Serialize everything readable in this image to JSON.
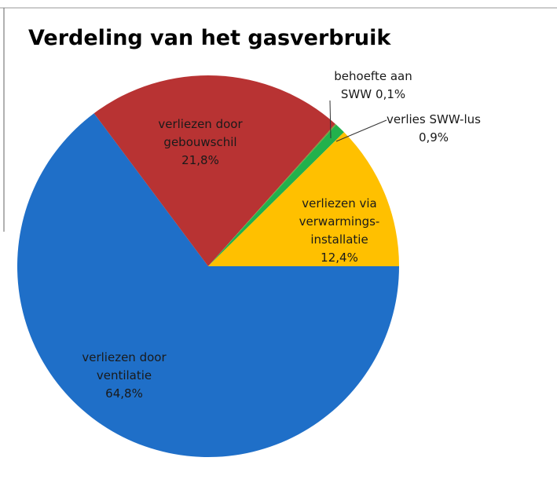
{
  "chart_data": {
    "type": "pie",
    "title": "Verdeling van het gasverbruik",
    "categories": [
      [
        "verliezen door",
        "ventilatie"
      ],
      [
        "verliezen door",
        "gebouwschil"
      ],
      [
        "behoefte aan",
        "SWW"
      ],
      [
        "verlies SWW-lus"
      ],
      [
        "verliezen via",
        "verwarmings-",
        "installatie"
      ]
    ],
    "values": [
      64.8,
      21.8,
      0.1,
      0.9,
      12.4
    ],
    "value_labels": [
      "64,8%",
      "21,8%",
      "0,1%",
      "0,9%",
      "12,4%"
    ],
    "colors": [
      "#1f6fc8",
      "#b83333",
      "#7a9a3a",
      "#22b14c",
      "#ffc000"
    ]
  }
}
